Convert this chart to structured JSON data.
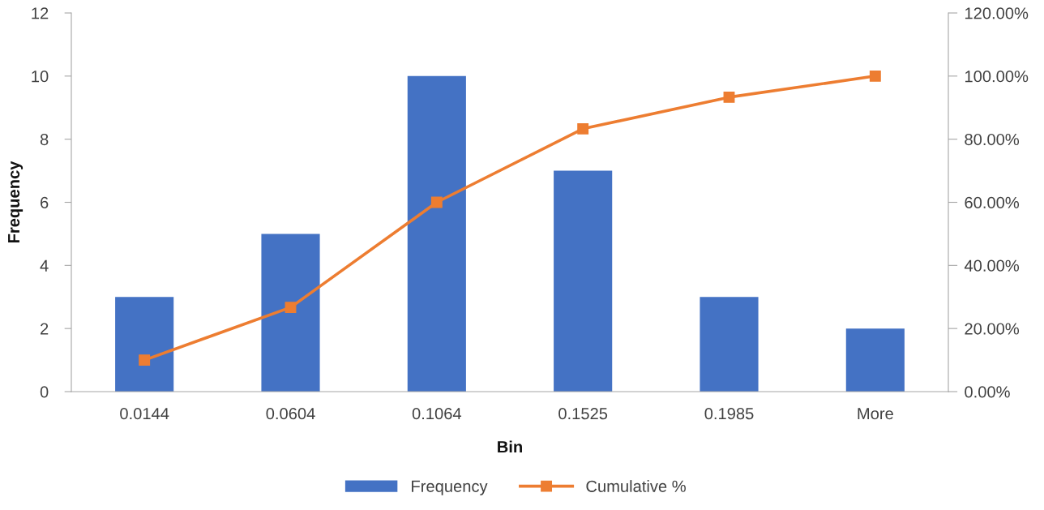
{
  "chart_data": {
    "type": "bar",
    "xlabel": "Bin",
    "ylabel": "Frequency",
    "categories": [
      "0.0144",
      "0.0604",
      "0.1064",
      "0.1525",
      "0.1985",
      "More"
    ],
    "series": [
      {
        "name": "Frequency",
        "color": "#4472c4",
        "values": [
          3,
          5,
          10,
          7,
          3,
          2
        ]
      },
      {
        "name": "Cumulative %",
        "type": "line",
        "axis": "y2",
        "color": "#ed7d31",
        "marker": "square",
        "line_style": "solid",
        "values": [
          10,
          26.7,
          60,
          83.3,
          93.3,
          100
        ]
      }
    ],
    "ylim": [
      0,
      12
    ],
    "yticks": [
      0,
      2,
      4,
      6,
      8,
      10,
      12
    ],
    "y2lim": [
      0,
      120
    ],
    "y2ticks": [
      {
        "value": 0,
        "label": "0.00%"
      },
      {
        "value": 20,
        "label": "20.00%"
      },
      {
        "value": 40,
        "label": "40.00%"
      },
      {
        "value": 60,
        "label": "60.00%"
      },
      {
        "value": 80,
        "label": "80.00%"
      },
      {
        "value": 100,
        "label": "100.00%"
      },
      {
        "value": 120,
        "label": "120.00%"
      }
    ],
    "grid": false,
    "legend": "bottom"
  }
}
